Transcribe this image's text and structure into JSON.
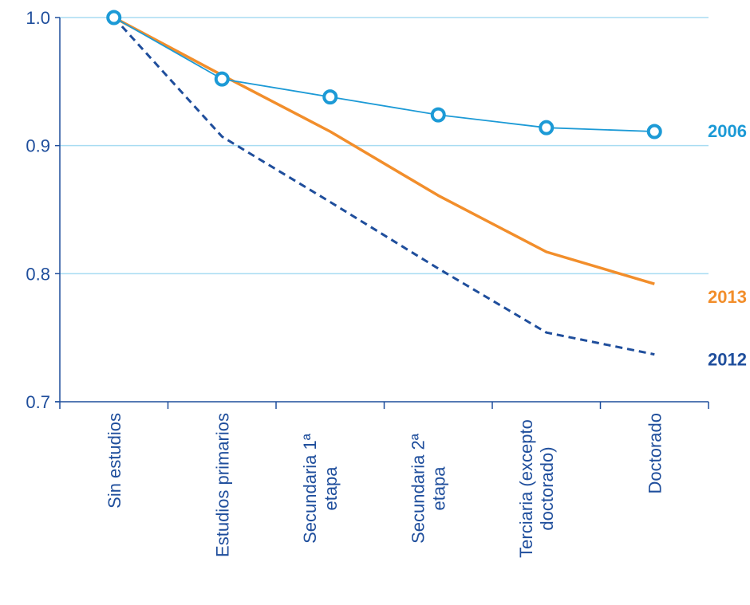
{
  "chart_data": {
    "type": "line",
    "title": "",
    "xlabel": "",
    "ylabel": "",
    "ylim": [
      0.7,
      1.0
    ],
    "yticks": [
      "0.7",
      "0.8",
      "0.9",
      "1.0"
    ],
    "categories": [
      [
        "Sin estudios"
      ],
      [
        "Estudios primarios"
      ],
      [
        "Secundaria 1ª",
        "etapa"
      ],
      [
        "Secundaria 2ª",
        "etapa"
      ],
      [
        "Terciaria (excepto",
        "doctorado)"
      ],
      [
        "Doctorado"
      ]
    ],
    "grid": "horizontal",
    "legend": "end-of-line labels",
    "series": [
      {
        "name": "2006",
        "values": [
          1.0,
          0.952,
          0.938,
          0.924,
          0.914,
          0.911
        ],
        "color": "#1c9ad6",
        "style": "solid-thin",
        "markers": "circle"
      },
      {
        "name": "2013",
        "values": [
          1.0,
          0.955,
          0.911,
          0.861,
          0.817,
          0.792
        ],
        "color": "#f28e2b",
        "style": "solid-thick",
        "markers": "none"
      },
      {
        "name": "2012",
        "values": [
          1.0,
          0.907,
          0.856,
          0.804,
          0.754,
          0.737
        ],
        "color": "#1f4e9c",
        "style": "dashed",
        "markers": "none"
      }
    ],
    "colors": {
      "axis": "#1f4e9c",
      "gridline": "#a8dcf2",
      "tick_text": "#1f4e9c"
    }
  }
}
